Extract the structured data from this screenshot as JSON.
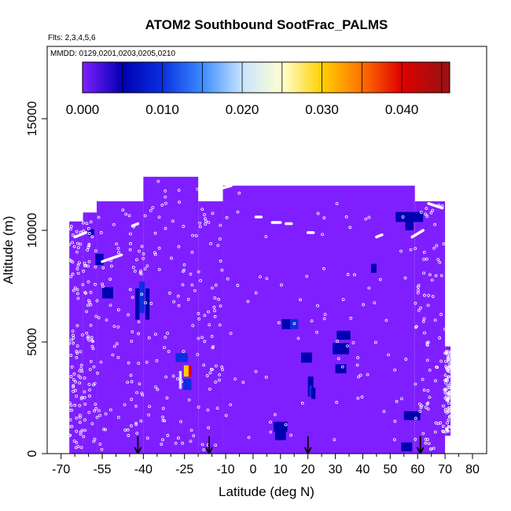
{
  "chart_data": {
    "type": "heatmap",
    "title": "ATOM2 Southbound SootFrac_PALMS",
    "subtitle_flights": "Flts: 2,3,4,5,6",
    "subtitle_dates": "MMDD: 0129,0201,0203,0205,0210",
    "xlabel": "Latitude (deg N)",
    "ylabel": "Altitude (m)",
    "xlim": [
      -70,
      80
    ],
    "ylim": [
      0,
      17500
    ],
    "x_ticks": [
      -70,
      -55,
      -40,
      -25,
      -10,
      0,
      10,
      20,
      30,
      40,
      50,
      60,
      70,
      80
    ],
    "x_minor_ticks": [
      -65,
      -60,
      -50,
      -45,
      -35,
      -30,
      -20,
      -15,
      -5,
      5,
      15,
      25,
      35,
      45,
      55,
      65,
      75
    ],
    "y_ticks": [
      0,
      5000,
      10000,
      15000
    ],
    "grid": false,
    "legend": "colorbar-top",
    "colorbar": {
      "min": 0.0,
      "max": 0.046,
      "ticks": [
        0.0,
        0.01,
        0.02,
        0.03,
        0.04
      ],
      "tick_labels": [
        "0.000",
        "0.010",
        "0.020",
        "0.030",
        "0.040"
      ],
      "boundaries": [
        0.005,
        0.01,
        0.015,
        0.02,
        0.025,
        0.03,
        0.035,
        0.04,
        0.045
      ],
      "colors": [
        "#7f1fff",
        "#0000b0",
        "#0a2fe0",
        "#3a8cff",
        "#c8e4ff",
        "#ffffd0",
        "#ffd000",
        "#ff7000",
        "#e00000",
        "#a01010"
      ]
    },
    "background_value": 0.0,
    "coverage_columns": [
      {
        "x0": -67,
        "x1": -62,
        "y0": 0,
        "y1": 10400
      },
      {
        "x0": -62,
        "x1": -57,
        "y0": 0,
        "y1": 10800
      },
      {
        "x0": -57,
        "x1": -40,
        "y0": 0,
        "y1": 11300
      },
      {
        "x0": -40,
        "x1": -20,
        "y0": 0,
        "y1": 12400
      },
      {
        "x0": -20,
        "x1": -11,
        "y0": 0,
        "y1": 11300
      },
      {
        "x0": -11,
        "x1": 59,
        "y0": 0,
        "y1": 12000
      },
      {
        "x0": 59,
        "x1": 70,
        "y0": 0,
        "y1": 11300
      },
      {
        "x0": 70,
        "x1": 72,
        "y0": 800,
        "y1": 4800
      }
    ],
    "cells": [
      {
        "lat": -53,
        "alt": 7200,
        "dlat": 4,
        "dalt": 500,
        "value": 0.006
      },
      {
        "lat": -56,
        "alt": 8700,
        "dlat": 3,
        "dalt": 500,
        "value": 0.006
      },
      {
        "lat": -40.5,
        "alt": 7000,
        "dlat": 2,
        "dalt": 1400,
        "value": 0.013
      },
      {
        "lat": -38.5,
        "alt": 6700,
        "dlat": 1.5,
        "dalt": 1400,
        "value": 0.009
      },
      {
        "lat": -42.2,
        "alt": 6700,
        "dlat": 1.5,
        "dalt": 1400,
        "value": 0.008
      },
      {
        "lat": -24,
        "alt": 3700,
        "dlat": 2.5,
        "dalt": 500,
        "value": 0.033
      },
      {
        "lat": -23,
        "alt": 3700,
        "dlat": 1,
        "dalt": 500,
        "value": 0.042
      },
      {
        "lat": -26,
        "alt": 4300,
        "dlat": 4.5,
        "dalt": 400,
        "value": 0.011
      },
      {
        "lat": -24,
        "alt": 3100,
        "dlat": 3,
        "dalt": 500,
        "value": 0.011
      },
      {
        "lat": -26.5,
        "alt": 3300,
        "dlat": 1,
        "dalt": 800,
        "value": 0.02
      },
      {
        "lat": 15,
        "alt": 5800,
        "dlat": 3,
        "dalt": 450,
        "value": 0.012
      },
      {
        "lat": 12,
        "alt": 5800,
        "dlat": 3,
        "dalt": 450,
        "value": 0.006
      },
      {
        "lat": 19.5,
        "alt": 4300,
        "dlat": 4,
        "dalt": 450,
        "value": 0.008
      },
      {
        "lat": 21,
        "alt": 3000,
        "dlat": 2,
        "dalt": 900,
        "value": 0.006
      },
      {
        "lat": 21,
        "alt": 2800,
        "dlat": 1,
        "dalt": 500,
        "value": 0.011
      },
      {
        "lat": 22,
        "alt": 2700,
        "dlat": 1.5,
        "dalt": 500,
        "value": 0.008
      },
      {
        "lat": 32,
        "alt": 4700,
        "dlat": 6,
        "dalt": 500,
        "value": 0.005
      },
      {
        "lat": 33,
        "alt": 5300,
        "dlat": 5,
        "dalt": 400,
        "value": 0.005
      },
      {
        "lat": 32,
        "alt": 3800,
        "dlat": 4,
        "dalt": 400,
        "value": 0.006
      },
      {
        "lat": 44,
        "alt": 8300,
        "dlat": 2,
        "dalt": 400,
        "value": 0.007
      },
      {
        "lat": 57,
        "alt": 10600,
        "dlat": 10,
        "dalt": 450,
        "value": 0.005
      },
      {
        "lat": 57,
        "alt": 10200,
        "dlat": 3,
        "dalt": 400,
        "value": 0.008
      },
      {
        "lat": 58,
        "alt": 1700,
        "dlat": 6,
        "dalt": 400,
        "value": 0.008
      },
      {
        "lat": 10,
        "alt": 1200,
        "dlat": 5,
        "dalt": 450,
        "value": 0.007
      },
      {
        "lat": 10,
        "alt": 800,
        "dlat": 4,
        "dalt": 400,
        "value": 0.005
      },
      {
        "lat": 56,
        "alt": 300,
        "dlat": 4,
        "dalt": 400,
        "value": 0.006
      },
      {
        "lat": -59,
        "alt": 9900,
        "dlat": 2,
        "dalt": 300,
        "value": 0.008
      }
    ],
    "flight_track_segments": [
      {
        "lat0": -65,
        "alt0": 9700,
        "lat1": -61,
        "alt1": 9900
      },
      {
        "lat0": -55,
        "alt0": 8600,
        "lat1": -48,
        "alt1": 8900
      },
      {
        "lat0": -52,
        "alt0": 11600,
        "lat1": -45,
        "alt1": 12300
      },
      {
        "lat0": -44,
        "alt0": 10200,
        "lat1": -42,
        "alt1": 10300
      },
      {
        "lat0": -11,
        "alt0": 11900,
        "lat1": -8,
        "alt1": 12000
      },
      {
        "lat0": 1,
        "alt0": 10600,
        "lat1": 3,
        "alt1": 10600
      },
      {
        "lat0": 7,
        "alt0": 10350,
        "lat1": 10,
        "alt1": 10350
      },
      {
        "lat0": 12,
        "alt0": 10300,
        "lat1": 14,
        "alt1": 10300
      },
      {
        "lat0": 20,
        "alt0": 9900,
        "lat1": 22,
        "alt1": 9900
      },
      {
        "lat0": 45,
        "alt0": 9700,
        "lat1": 47,
        "alt1": 9800
      },
      {
        "lat0": 58,
        "alt0": 9700,
        "lat1": 62,
        "alt1": 10000
      },
      {
        "lat0": 64,
        "alt0": 11200,
        "lat1": 69,
        "alt1": 11000
      }
    ],
    "sample_point_count": 600,
    "arrow_latitudes": [
      -42,
      -16,
      20,
      61
    ]
  }
}
